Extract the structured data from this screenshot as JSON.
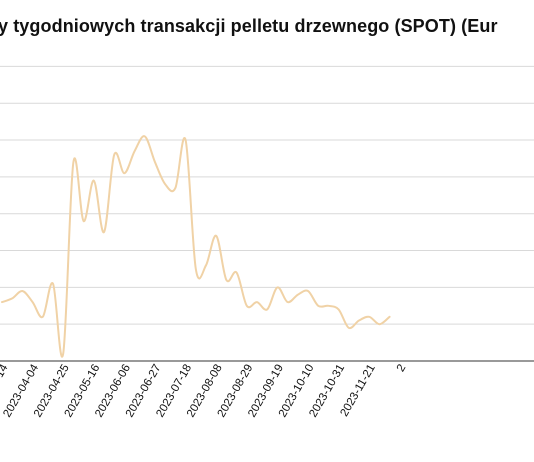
{
  "chart_data": {
    "type": "line",
    "title": "y tygodniowych transakcji pelletu drzewnego (SPOT) (Eur",
    "xlabel": "",
    "ylabel": "",
    "grid": true,
    "line_color": "#f0d2a6",
    "grid_color": "#d9d9d9",
    "ylim": [
      0,
      8.5
    ],
    "x_tick_labels": [
      "14",
      "2023-04-04",
      "2023-04-25",
      "2023-05-16",
      "2023-06-06",
      "2023-06-27",
      "2023-07-18",
      "2023-08-08",
      "2023-08-29",
      "2023-09-19",
      "2023-10-10",
      "2023-10-31",
      "2023-11-21",
      "2"
    ],
    "series": [
      {
        "x": [
          "2023-03-14",
          "2023-03-21",
          "2023-03-28",
          "2023-04-04",
          "2023-04-11",
          "2023-04-18",
          "2023-04-25",
          "2023-05-02",
          "2023-05-09",
          "2023-05-16",
          "2023-05-23",
          "2023-05-30",
          "2023-06-06",
          "2023-06-13",
          "2023-06-20",
          "2023-06-27",
          "2023-07-04",
          "2023-07-11",
          "2023-07-18",
          "2023-07-25",
          "2023-08-01",
          "2023-08-08",
          "2023-08-15",
          "2023-08-22",
          "2023-08-29",
          "2023-09-05",
          "2023-09-12",
          "2023-09-19",
          "2023-09-26",
          "2023-10-03",
          "2023-10-10",
          "2023-10-17",
          "2023-10-24",
          "2023-10-31",
          "2023-11-07",
          "2023-11-14",
          "2023-11-21",
          "2023-11-28",
          "2023-12-05"
        ],
        "values": [
          1.6,
          1.7,
          1.9,
          1.6,
          1.2,
          2.1,
          0.2,
          5.4,
          3.8,
          4.9,
          3.5,
          5.6,
          5.1,
          5.7,
          6.1,
          5.4,
          4.8,
          4.7,
          6.0,
          2.5,
          2.6,
          3.4,
          2.2,
          2.4,
          1.5,
          1.6,
          1.4,
          2.0,
          1.6,
          1.8,
          1.9,
          1.5,
          1.5,
          1.4,
          0.9,
          1.1,
          1.2,
          1.0,
          1.2
        ]
      }
    ]
  }
}
